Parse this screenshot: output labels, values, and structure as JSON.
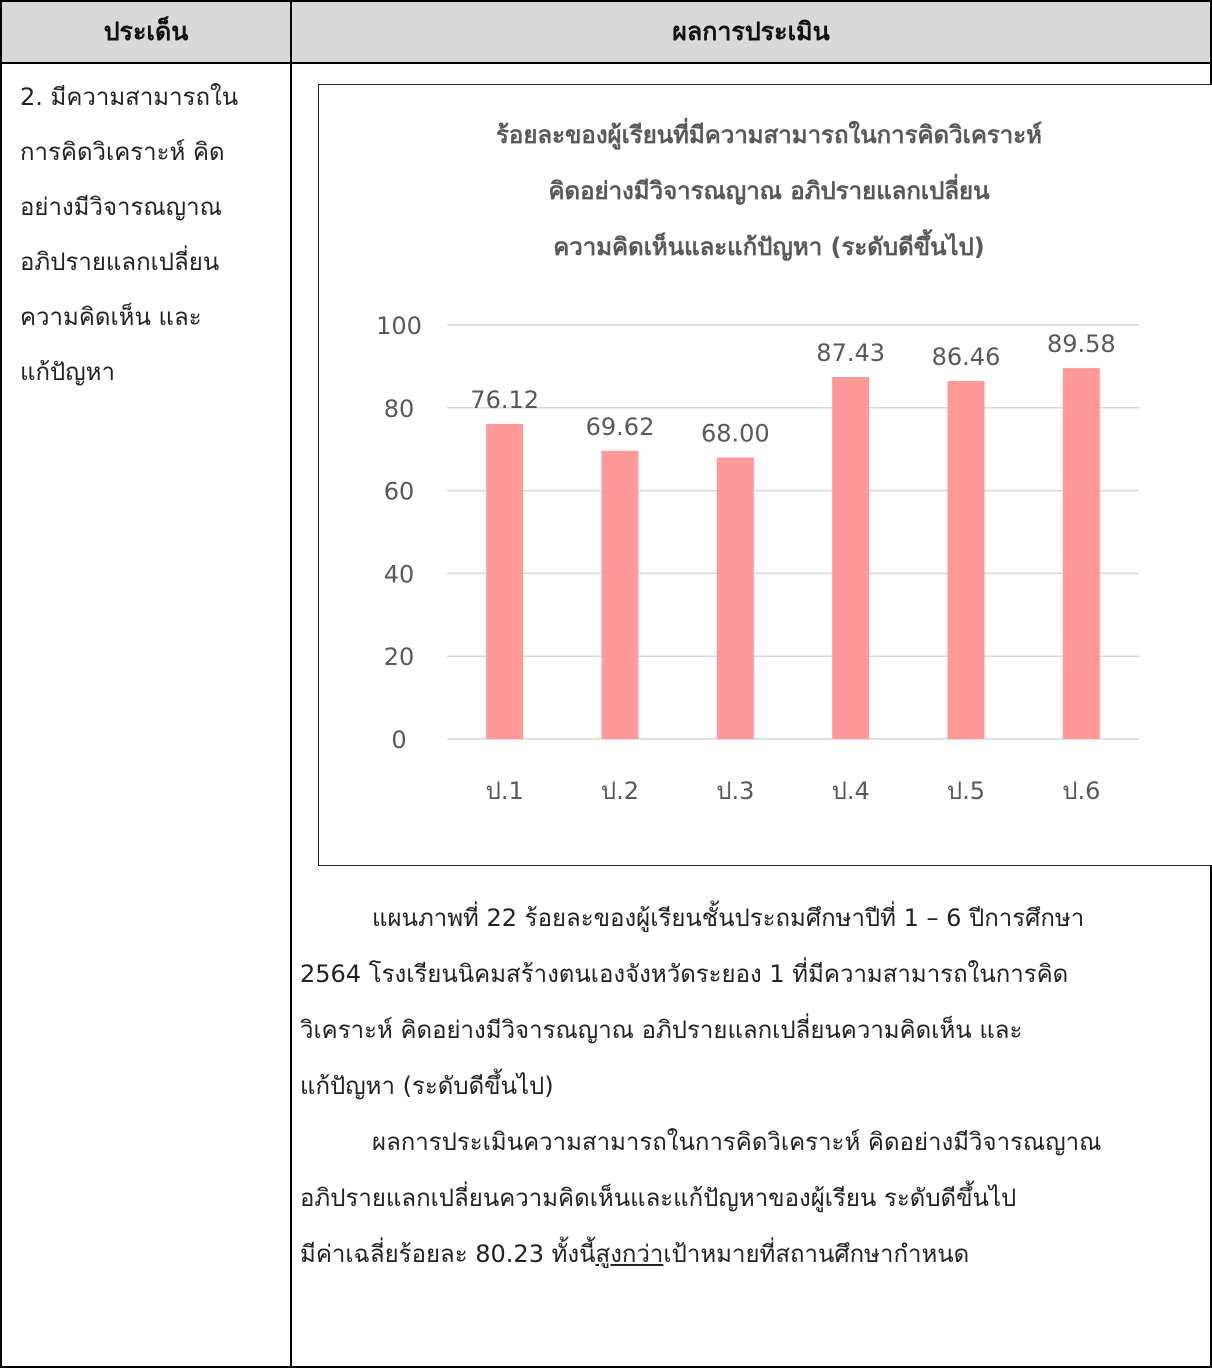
{
  "table": {
    "header": {
      "col1": "ประเด็น",
      "col2": "ผลการประเมิน"
    },
    "issue_lines": [
      "2. มีความสามารถใน",
      "การคิดวิเคราะห์  คิด",
      "อย่างมีวิจารณญาณ",
      "อภิปรายแลกเปลี่ยน",
      "ความคิดเห็น  และ",
      "แก้ปัญหา"
    ]
  },
  "chart_data": {
    "type": "bar",
    "title_lines": [
      "ร้อยละของผู้เรียนที่มีความสามารถในการคิดวิเคราะห์",
      "คิดอย่างมีวิจารณญาณ  อภิปรายแลกเปลี่ยน",
      "ความคิดเห็นและแก้ปัญหา (ระดับดีขึ้นไป)"
    ],
    "categories": [
      "ป.1",
      "ป.2",
      "ป.3",
      "ป.4",
      "ป.5",
      "ป.6"
    ],
    "values": [
      76.12,
      69.62,
      68.0,
      87.43,
      86.46,
      89.58
    ],
    "value_labels": [
      "76.12",
      "69.62",
      "68.00",
      "87.43",
      "86.46",
      "89.58"
    ],
    "ylim": [
      0,
      100
    ],
    "yticks": [
      "0",
      "20",
      "40",
      "60",
      "80",
      "100"
    ],
    "grid": true,
    "bar_color": "#ff9999",
    "xlabel": "",
    "ylabel": ""
  },
  "caption": {
    "line1": "แผนภาพที่ 22 ร้อยละของผู้เรียนชั้นประถมศึกษาปีที่ 1 – 6 ปีการศึกษา",
    "line2": "2564 โรงเรียนนิคมสร้างตนเองจังหวัดระยอง 1 ที่มีความสามารถในการคิด",
    "line3": "วิเคราะห์  คิดอย่างมีวิจารณญาณ  อภิปรายแลกเปลี่ยนความคิดเห็น  และ",
    "line4": "แก้ปัญหา (ระดับดีขึ้นไป)"
  },
  "result": {
    "line1": "ผลการประเมินความสามารถในการคิดวิเคราะห์  คิดอย่างมีวิจารณญาณ",
    "line2": "อภิปรายแลกเปลี่ยนความคิดเห็นและแก้ปัญหาของผู้เรียน ระดับดีขึ้นไป",
    "line3_pre": "มีค่าเฉลี่ยร้อยละ 80.23 ทั้งนี้",
    "line3_emph": "สูงกว่า",
    "line3_post": "เป้าหมายที่สถานศึกษากำหนด"
  }
}
